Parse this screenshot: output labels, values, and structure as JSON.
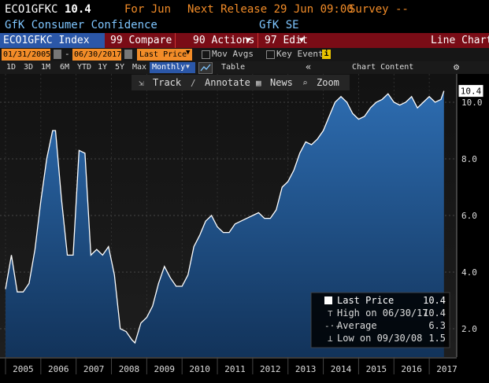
{
  "header": {
    "ticker": "ECO1GFKC",
    "value": "10.4",
    "period": "For Jun",
    "next_release": "Next Release 29 Jun 09:00",
    "survey": "Survey --",
    "name": "GfK Consumer Confidence",
    "source": "GfK SE"
  },
  "toolbar": {
    "index_name": "ECO1GFKC Index",
    "compare": "99 Compare",
    "actions": "90 Actions",
    "edit": "97 Edit",
    "line_chart": "Line Chart"
  },
  "controls": {
    "start_date": "01/31/2005",
    "end_date": "06/30/2017",
    "field": "Last Price",
    "mov_avgs": "Mov Avgs",
    "key_events": "Key Events"
  },
  "periods": [
    "1D",
    "3D",
    "1M",
    "6M",
    "YTD",
    "1Y",
    "5Y",
    "Max"
  ],
  "frequency": "Monthly",
  "table_label": "Table",
  "chart_content": "Chart Content",
  "chart_tools": [
    "Track",
    "Annotate",
    "News",
    "Zoom"
  ],
  "legend": {
    "last_label": "Last Price",
    "last_value": "10.4",
    "high_label": "High on 06/30/17",
    "high_value": "10.4",
    "avg_label": "Average",
    "avg_value": "6.3",
    "low_label": "Low on 09/30/08",
    "low_value": "1.5"
  },
  "colors": {
    "amber": "#f28c28",
    "blue": "#7fc6ff",
    "red_bar": "#7a0c16",
    "fill": "#1f4f83"
  },
  "chart_data": {
    "type": "area",
    "title": "",
    "xlabel": "",
    "ylabel": "",
    "ylim": [
      1.0,
      11.0
    ],
    "yticks": [
      "2.0",
      "4.0",
      "6.0",
      "8.0",
      "10.0"
    ],
    "xticks": [
      "2005",
      "2006",
      "2007",
      "2008",
      "2009",
      "2010",
      "2011",
      "2012",
      "2013",
      "2014",
      "2015",
      "2016",
      "2017"
    ],
    "last_tag": "10.4",
    "x": [
      "2005-01",
      "2005-03",
      "2005-05",
      "2005-07",
      "2005-09",
      "2005-11",
      "2006-01",
      "2006-03",
      "2006-05",
      "2006-06",
      "2006-08",
      "2006-10",
      "2006-12",
      "2007-02",
      "2007-04",
      "2007-06",
      "2007-08",
      "2007-10",
      "2007-12",
      "2008-02",
      "2008-04",
      "2008-06",
      "2008-08",
      "2008-09",
      "2008-11",
      "2009-01",
      "2009-03",
      "2009-05",
      "2009-07",
      "2009-09",
      "2009-11",
      "2010-01",
      "2010-03",
      "2010-05",
      "2010-07",
      "2010-09",
      "2010-11",
      "2011-01",
      "2011-03",
      "2011-05",
      "2011-07",
      "2011-09",
      "2011-11",
      "2012-01",
      "2012-03",
      "2012-05",
      "2012-07",
      "2012-09",
      "2012-11",
      "2013-01",
      "2013-03",
      "2013-05",
      "2013-07",
      "2013-09",
      "2013-11",
      "2014-01",
      "2014-03",
      "2014-05",
      "2014-07",
      "2014-09",
      "2014-11",
      "2015-01",
      "2015-03",
      "2015-05",
      "2015-07",
      "2015-09",
      "2015-11",
      "2016-01",
      "2016-03",
      "2016-05",
      "2016-07",
      "2016-09",
      "2016-11",
      "2017-01",
      "2017-03",
      "2017-05",
      "2017-06"
    ],
    "values": [
      3.4,
      4.6,
      3.3,
      3.3,
      3.6,
      4.8,
      6.5,
      8.0,
      9.0,
      9.0,
      6.6,
      4.6,
      4.6,
      8.3,
      8.2,
      4.6,
      4.8,
      4.6,
      4.9,
      3.9,
      2.0,
      1.9,
      1.6,
      1.5,
      2.2,
      2.4,
      2.8,
      3.6,
      4.2,
      3.8,
      3.5,
      3.5,
      3.9,
      4.9,
      5.3,
      5.8,
      6.0,
      5.6,
      5.4,
      5.4,
      5.7,
      5.8,
      5.9,
      6.0,
      6.1,
      5.9,
      5.9,
      6.2,
      7.0,
      7.2,
      7.6,
      8.2,
      8.6,
      8.5,
      8.7,
      9.0,
      9.5,
      10.0,
      10.2,
      10.0,
      9.6,
      9.4,
      9.5,
      9.8,
      10.0,
      10.1,
      10.3,
      10.0,
      9.9,
      10.0,
      10.2,
      9.8,
      10.0,
      10.2,
      10.0,
      10.1,
      10.4
    ]
  }
}
